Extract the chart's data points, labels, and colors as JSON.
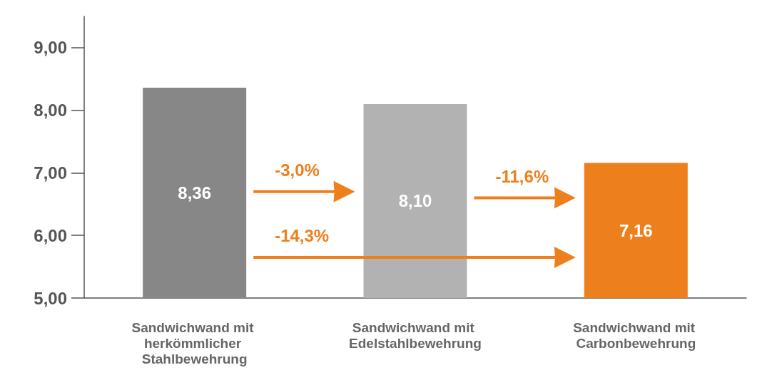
{
  "chart_data": {
    "type": "bar",
    "categories": [
      "Sandwichwand mit herkömmlicher Stahlbewehrung",
      "Sandwichwand mit Edelstahlbewehrung",
      "Sandwichwand mit Carbonbewehrung"
    ],
    "values": [
      8.36,
      8.1,
      7.16
    ],
    "colors": [
      "#878787",
      "#b2b2b2",
      "#ee7f1d"
    ],
    "value_labels": [
      "8,36",
      "8,10",
      "7,16"
    ],
    "ylim": [
      5,
      9.5
    ],
    "yticks": [
      {
        "value": 5,
        "label": "5,00"
      },
      {
        "value": 6,
        "label": "6,00"
      },
      {
        "value": 7,
        "label": "7,00"
      },
      {
        "value": 8,
        "label": "8,00"
      },
      {
        "value": 9,
        "label": "9,00"
      }
    ],
    "grid": false,
    "annotations": [
      "-3,0%",
      "-11,6%",
      "-14,3%"
    ]
  }
}
